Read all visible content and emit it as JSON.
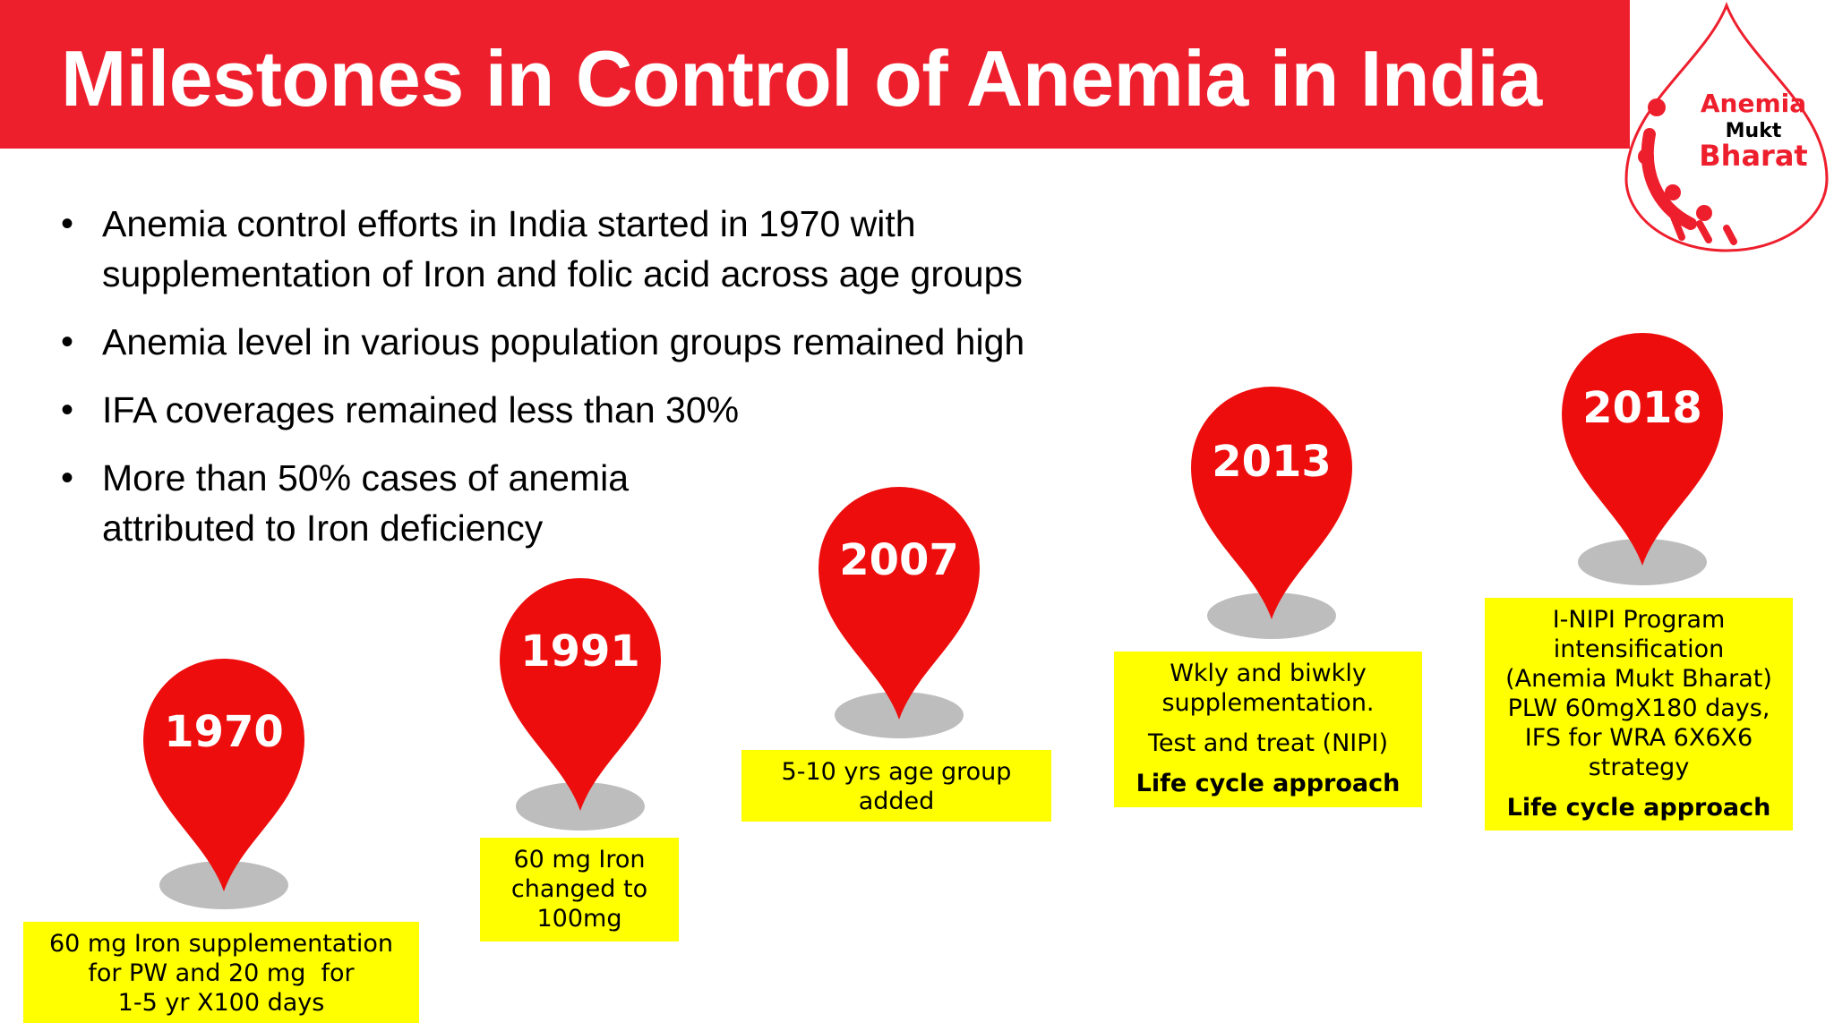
{
  "slide": {
    "title": "Milestones in Control of Anemia in India",
    "accent_color": "#ee1f2d",
    "box_color": "#ffff00"
  },
  "logo": {
    "line1": "Anemia",
    "line2": "Mukt",
    "line3": "Bharat"
  },
  "bullets": [
    {
      "line1": "Anemia control efforts in India started in 1970 with",
      "line2": "supplementation of Iron and folic acid across age groups"
    },
    {
      "line1": "Anemia level in various population groups remained high",
      "line2": ""
    },
    {
      "line1": "IFA coverages remained less than 30%",
      "line2": ""
    },
    {
      "line1": "More than 50% cases of anemia",
      "line2": "attributed to Iron deficiency"
    }
  ],
  "milestones": [
    {
      "year": "1970",
      "lines": [
        "60 mg Iron supplementation",
        "for PW and 20 mg  for",
        "1-5 yr X100 days"
      ]
    },
    {
      "year": "1991",
      "lines": [
        "60 mg Iron",
        "changed to",
        "100mg"
      ]
    },
    {
      "year": "2007",
      "lines": [
        "5-10 yrs age group",
        "added"
      ]
    },
    {
      "year": "2013",
      "lines": [
        "Wkly and biwkly",
        "supplementation."
      ],
      "extra": "Test and treat (NIPI)",
      "bold": "Life cycle approach"
    },
    {
      "year": "2018",
      "lines": [
        "I-NIPI Program",
        "intensification",
        "(Anemia Mukt Bharat)",
        "PLW 60mgX180 days,",
        "IFS for WRA 6X6X6",
        "strategy"
      ],
      "bold": "Life cycle approach"
    }
  ]
}
